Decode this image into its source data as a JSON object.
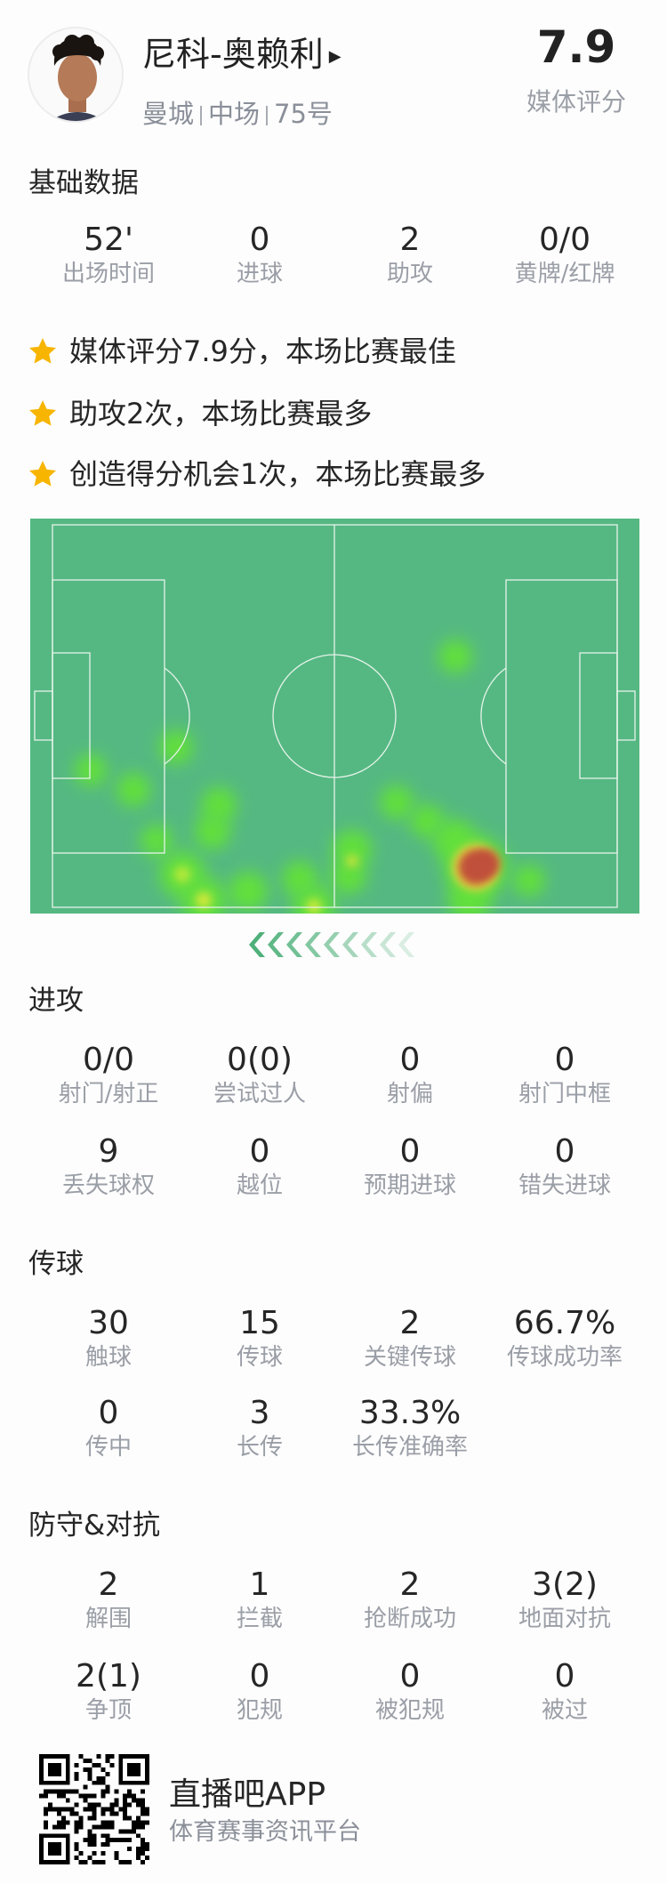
{
  "player": {
    "name": "尼科-奥赖利",
    "team": "曼城",
    "position": "中场",
    "number": "75号",
    "rating": "7.9",
    "rating_label": "媒体评分"
  },
  "basic": {
    "title": "基础数据",
    "stats": [
      {
        "value": "52'",
        "label": "出场时间"
      },
      {
        "value": "0",
        "label": "进球"
      },
      {
        "value": "2",
        "label": "助攻"
      },
      {
        "value": "0/0",
        "label": "黄牌/红牌"
      }
    ]
  },
  "highlights": [
    "媒体评分7.9分，本场比赛最佳",
    "助攻2次，本场比赛最多",
    "创造得分机会1次，本场比赛最多"
  ],
  "heatmap": {
    "pitch_color": "#55b882",
    "direction": "attacking-left"
  },
  "attack": {
    "title": "进攻",
    "stats": [
      {
        "value": "0/0",
        "label": "射门/射正"
      },
      {
        "value": "0(0)",
        "label": "尝试过人"
      },
      {
        "value": "0",
        "label": "射偏"
      },
      {
        "value": "0",
        "label": "射门中框"
      },
      {
        "value": "9",
        "label": "丢失球权"
      },
      {
        "value": "0",
        "label": "越位"
      },
      {
        "value": "0",
        "label": "预期进球"
      },
      {
        "value": "0",
        "label": "错失进球"
      }
    ]
  },
  "passing": {
    "title": "传球",
    "stats": [
      {
        "value": "30",
        "label": "触球"
      },
      {
        "value": "15",
        "label": "传球"
      },
      {
        "value": "2",
        "label": "关键传球"
      },
      {
        "value": "66.7%",
        "label": "传球成功率"
      },
      {
        "value": "0",
        "label": "传中"
      },
      {
        "value": "3",
        "label": "长传"
      },
      {
        "value": "33.3%",
        "label": "长传准确率"
      }
    ]
  },
  "defense": {
    "title": "防守&对抗",
    "stats": [
      {
        "value": "2",
        "label": "解围"
      },
      {
        "value": "1",
        "label": "拦截"
      },
      {
        "value": "2",
        "label": "抢断成功"
      },
      {
        "value": "3(2)",
        "label": "地面对抗"
      },
      {
        "value": "2(1)",
        "label": "争顶"
      },
      {
        "value": "0",
        "label": "犯规"
      },
      {
        "value": "0",
        "label": "被犯规"
      },
      {
        "value": "0",
        "label": "被过"
      }
    ]
  },
  "footer": {
    "app_name": "直播吧APP",
    "tagline": "体育赛事资讯平台"
  }
}
